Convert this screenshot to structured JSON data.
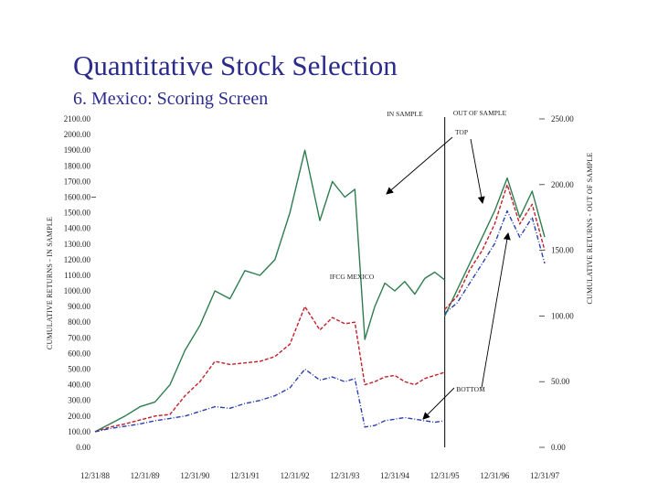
{
  "slide": {
    "title": "Quantitative Stock Selection",
    "subtitle": "6. Mexico: Scoring Screen"
  },
  "colors": {
    "top": "#2e7d4f",
    "ifc": "#c0202a",
    "bottom": "#2a3fb0",
    "text": "#2b2b8c"
  },
  "chart_data": {
    "type": "line",
    "title": "",
    "xlabel": "",
    "ylabel_left": "CUMULATIVE RETURNS - IN SAMPLE",
    "ylabel_right": "CUMULATIVE RETURNS - OUT OF SAMPLE",
    "ylim_left": [
      0,
      2100
    ],
    "ylim_right": [
      0,
      250
    ],
    "yticks_left": [
      "0.00",
      "100.00",
      "200.00",
      "300.00",
      "400.00",
      "500.00",
      "600.00",
      "700.00",
      "800.00",
      "900.00",
      "1000.00",
      "1100.00",
      "1200.00",
      "1300.00",
      "1400.00",
      "1500.00",
      "1600.00",
      "1700.00",
      "1800.00",
      "1900.00",
      "2000.00",
      "2100.00"
    ],
    "yticks_right": [
      "0.00",
      "50.00",
      "100.00",
      "150.00",
      "200.00",
      "250.00"
    ],
    "xticks": [
      "12/31/88",
      "12/31/89",
      "12/31/90",
      "12/31/91",
      "12/31/92",
      "12/31/93",
      "12/31/94",
      "12/31/95",
      "12/31/96",
      "12/31/97"
    ],
    "xlim": [
      1989,
      1998
    ],
    "split_year": 1996,
    "annotations": {
      "in_sample": "IN SAMPLE",
      "out_of_sample": "OUT OF SAMPLE",
      "top": "TOP",
      "ifc": "IFCG MEXICO",
      "bottom": "BOTTOM"
    },
    "in_sample_series": [
      {
        "name": "TOP",
        "style": "solid",
        "x": [
          1989,
          1989.3,
          1989.6,
          1989.9,
          1990.2,
          1990.5,
          1990.8,
          1991.1,
          1991.4,
          1991.7,
          1992.0,
          1992.3,
          1992.6,
          1992.9,
          1993.2,
          1993.5,
          1993.75,
          1994.0,
          1994.2,
          1994.4,
          1994.6,
          1994.8,
          1995.0,
          1995.2,
          1995.4,
          1995.6,
          1995.8,
          1996.0
        ],
        "y": [
          100,
          150,
          200,
          260,
          290,
          400,
          620,
          780,
          1000,
          950,
          1130,
          1100,
          1200,
          1500,
          1900,
          1450,
          1700,
          1600,
          1650,
          690,
          900,
          1050,
          1000,
          1060,
          980,
          1080,
          1120,
          1070
        ]
      },
      {
        "name": "IFCG MEXICO",
        "style": "dashed",
        "x": [
          1989,
          1989.3,
          1989.6,
          1989.9,
          1990.2,
          1990.5,
          1990.8,
          1991.1,
          1991.4,
          1991.7,
          1992.0,
          1992.3,
          1992.6,
          1992.9,
          1993.2,
          1993.5,
          1993.75,
          1994.0,
          1994.2,
          1994.4,
          1994.6,
          1994.8,
          1995.0,
          1995.2,
          1995.4,
          1995.6,
          1995.8,
          1996.0
        ],
        "y": [
          100,
          130,
          150,
          175,
          200,
          210,
          330,
          420,
          550,
          530,
          540,
          550,
          580,
          660,
          900,
          750,
          830,
          790,
          800,
          400,
          420,
          450,
          460,
          420,
          400,
          440,
          460,
          480
        ]
      },
      {
        "name": "BOTTOM",
        "style": "dashdot",
        "x": [
          1989,
          1989.3,
          1989.6,
          1989.9,
          1990.2,
          1990.5,
          1990.8,
          1991.1,
          1991.4,
          1991.7,
          1992.0,
          1992.3,
          1992.6,
          1992.9,
          1993.2,
          1993.5,
          1993.75,
          1994.0,
          1994.2,
          1994.4,
          1994.6,
          1994.8,
          1995.0,
          1995.2,
          1995.4,
          1995.6,
          1995.8,
          1996.0
        ],
        "y": [
          100,
          120,
          135,
          150,
          170,
          185,
          200,
          230,
          260,
          250,
          280,
          300,
          330,
          380,
          500,
          430,
          450,
          420,
          440,
          130,
          140,
          170,
          180,
          190,
          180,
          170,
          160,
          170
        ]
      }
    ],
    "out_of_sample_series": [
      {
        "name": "TOP",
        "style": "solid",
        "x": [
          1996.0,
          1996.25,
          1996.5,
          1996.75,
          1997.0,
          1997.25,
          1997.5,
          1997.75,
          1998.0
        ],
        "y": [
          100,
          120,
          140,
          160,
          180,
          205,
          175,
          195,
          160
        ]
      },
      {
        "name": "IFCG MEXICO",
        "style": "dashed",
        "x": [
          1996.0,
          1996.25,
          1996.5,
          1996.75,
          1997.0,
          1997.25,
          1997.5,
          1997.75,
          1998.0
        ],
        "y": [
          105,
          115,
          135,
          150,
          170,
          200,
          170,
          185,
          150
        ]
      },
      {
        "name": "BOTTOM",
        "style": "dashdot",
        "x": [
          1996.0,
          1996.25,
          1996.5,
          1996.75,
          1997.0,
          1997.25,
          1997.5,
          1997.75,
          1998.0
        ],
        "y": [
          102,
          110,
          125,
          140,
          155,
          180,
          160,
          175,
          140
        ]
      }
    ]
  }
}
